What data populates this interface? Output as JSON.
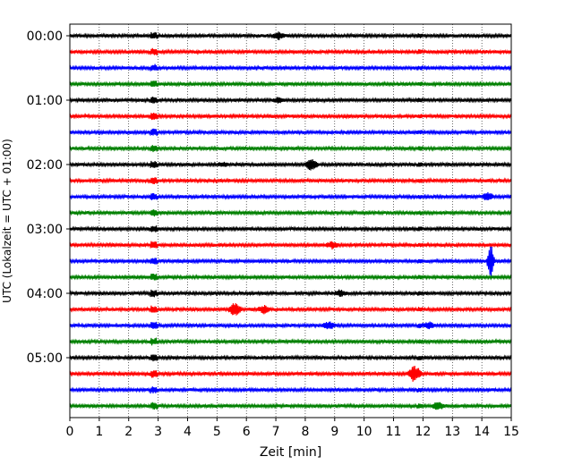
{
  "chart_data": {
    "type": "line",
    "title": "",
    "xlabel": "Zeit  [min]",
    "ylabel": "UTC (Lokalzeit = UTC + 01:00)",
    "xlim": [
      0,
      15
    ],
    "x_ticks": [
      "0",
      "1",
      "2",
      "3",
      "4",
      "5",
      "6",
      "7",
      "8",
      "9",
      "10",
      "11",
      "12",
      "13",
      "14",
      "15"
    ],
    "y_tick_labels": [
      "00:00",
      "01:00",
      "02:00",
      "03:00",
      "04:00",
      "05:00"
    ],
    "row_interval_minutes": 15,
    "row_start_times": [
      "00:00",
      "00:15",
      "00:30",
      "00:45",
      "01:00",
      "01:15",
      "01:30",
      "01:45",
      "02:00",
      "02:15",
      "02:30",
      "02:45",
      "03:00",
      "03:15",
      "03:30",
      "03:45",
      "04:00",
      "04:15",
      "04:30",
      "04:45",
      "05:00",
      "05:15",
      "05:30",
      "05:45"
    ],
    "row_colors": [
      "#000000",
      "#ff0000",
      "#0000ff",
      "#008000"
    ],
    "grid": {
      "x": true,
      "y": false,
      "style": "dotted"
    },
    "events": [
      {
        "row": "00:00",
        "minute": 7.1,
        "amplitude": 0.4
      },
      {
        "row": "01:00",
        "minute": 7.1,
        "amplitude": 0.3
      },
      {
        "row": "02:00",
        "minute": 8.2,
        "amplitude": 0.7
      },
      {
        "row": "02:00",
        "minute": 5.2,
        "amplitude": 0.2
      },
      {
        "row": "02:30",
        "minute": 14.2,
        "amplitude": 0.45
      },
      {
        "row": "03:15",
        "minute": 8.9,
        "amplitude": 0.35
      },
      {
        "row": "03:30",
        "minute": 14.3,
        "amplitude": 2.2
      },
      {
        "row": "04:00",
        "minute": 9.2,
        "amplitude": 0.35
      },
      {
        "row": "04:15",
        "minute": 5.6,
        "amplitude": 0.8
      },
      {
        "row": "04:15",
        "minute": 6.6,
        "amplitude": 0.4
      },
      {
        "row": "04:30",
        "minute": 8.8,
        "amplitude": 0.4
      },
      {
        "row": "04:30",
        "minute": 12.2,
        "amplitude": 0.35
      },
      {
        "row": "05:15",
        "minute": 11.7,
        "amplitude": 1.0
      },
      {
        "row": "05:45",
        "minute": 12.5,
        "amplitude": 0.45
      }
    ]
  }
}
